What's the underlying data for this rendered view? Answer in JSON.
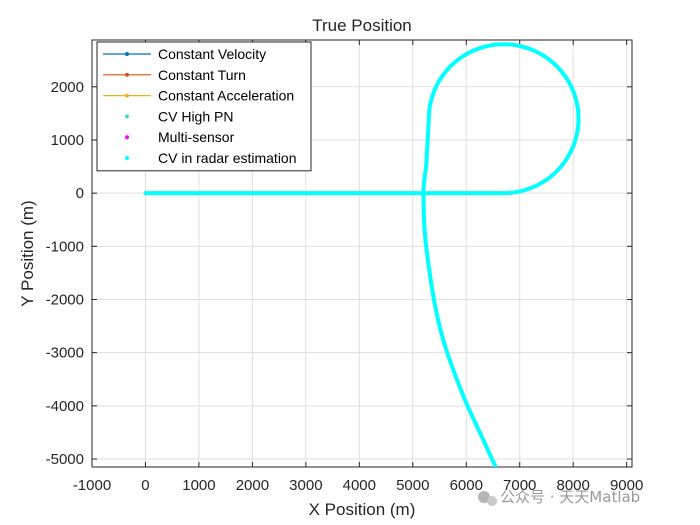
{
  "chart_data": {
    "type": "line",
    "title": "True Position",
    "xlabel": "X Position (m)",
    "ylabel": "Y Position (m)",
    "xlim": [
      -1000,
      9100
    ],
    "ylim": [
      -5150,
      2880
    ],
    "xticks": [
      -1000,
      0,
      1000,
      2000,
      3000,
      4000,
      5000,
      6000,
      7000,
      8000,
      9000
    ],
    "yticks": [
      -5000,
      -4000,
      -3000,
      -2000,
      -1000,
      0,
      1000,
      2000
    ],
    "grid": true,
    "legend_position": "top-left",
    "legend": [
      {
        "label": "Constant Velocity",
        "color": "#0072BD",
        "marker": "line-dot"
      },
      {
        "label": "Constant Turn",
        "color": "#D95319",
        "marker": "line-dot"
      },
      {
        "label": "Constant Acceleration",
        "color": "#EDB120",
        "marker": "line-dot"
      },
      {
        "label": "CV High PN",
        "color": "#4DD2E6",
        "marker": "dot"
      },
      {
        "label": "Multi-sensor",
        "color": "#FF00FF",
        "marker": "dot"
      },
      {
        "label": "CV in radar estimation",
        "color": "#00FFFF",
        "marker": "dot"
      }
    ],
    "trajectory": {
      "color": "#00FFFF",
      "segments": [
        {
          "kind": "line",
          "from": [
            0,
            0
          ],
          "to": [
            6700,
            0
          ]
        },
        {
          "kind": "arc",
          "center": [
            6700,
            1400
          ],
          "radius": 1400,
          "start_deg": -90,
          "end_deg": 180
        },
        {
          "kind": "line",
          "from": [
            5300,
            1400
          ],
          "to": [
            5250,
            500
          ]
        },
        {
          "kind": "curve",
          "points": [
            [
              5250,
              500
            ],
            [
              5200,
              0
            ],
            [
              5250,
              -1000
            ],
            [
              5500,
              -2500
            ],
            [
              5900,
              -3700
            ],
            [
              6300,
              -4600
            ],
            [
              6550,
              -5150
            ]
          ]
        }
      ]
    }
  },
  "watermark": "公众号 · 天天Matlab"
}
